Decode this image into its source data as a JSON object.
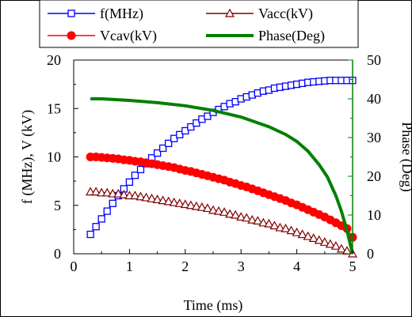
{
  "chart_data": {
    "type": "line",
    "xlabel": "Time (ms)",
    "ylabel_left": "f (MHz), V (kV)",
    "ylabel_right": "Phase (Deg)",
    "xlim": [
      0,
      5
    ],
    "ylim_left": [
      0,
      20
    ],
    "ylim_right": [
      0,
      50
    ],
    "xticks": [
      "0",
      "1",
      "2",
      "3",
      "4",
      "5"
    ],
    "yticks_left": [
      "0",
      "5",
      "10",
      "15",
      "20"
    ],
    "yticks_right": [
      "0",
      "10",
      "20",
      "30",
      "40",
      "50"
    ],
    "legend_placement": "top",
    "grid": false,
    "series": [
      {
        "name": "f(MHz)",
        "axis": "left",
        "color": "#0000ff",
        "marker": "square",
        "x": [
          0.3,
          0.4,
          0.5,
          0.6,
          0.7,
          0.8,
          0.9,
          1.0,
          1.1,
          1.2,
          1.3,
          1.4,
          1.5,
          1.6,
          1.7,
          1.8,
          1.9,
          2.0,
          2.1,
          2.2,
          2.3,
          2.4,
          2.5,
          2.6,
          2.7,
          2.8,
          2.9,
          3.0,
          3.1,
          3.2,
          3.3,
          3.4,
          3.5,
          3.6,
          3.7,
          3.8,
          3.9,
          4.0,
          4.1,
          4.2,
          4.3,
          4.4,
          4.5,
          4.6,
          4.7,
          4.8,
          4.9,
          5.0
        ],
        "y": [
          2.0,
          2.8,
          3.6,
          4.4,
          5.2,
          6.0,
          6.7,
          7.4,
          8.1,
          8.7,
          9.3,
          9.9,
          10.4,
          10.9,
          11.4,
          11.9,
          12.3,
          12.7,
          13.1,
          13.5,
          13.9,
          14.2,
          14.6,
          14.9,
          15.2,
          15.5,
          15.7,
          16.0,
          16.2,
          16.4,
          16.6,
          16.8,
          16.9,
          17.1,
          17.2,
          17.3,
          17.4,
          17.5,
          17.6,
          17.7,
          17.75,
          17.8,
          17.85,
          17.9,
          17.9,
          17.9,
          17.9,
          17.9
        ]
      },
      {
        "name": "Vacc(kV)",
        "axis": "left",
        "color": "#800000",
        "marker": "triangle",
        "x": [
          0.3,
          0.4,
          0.5,
          0.6,
          0.7,
          0.8,
          0.9,
          1.0,
          1.1,
          1.2,
          1.3,
          1.4,
          1.5,
          1.6,
          1.7,
          1.8,
          1.9,
          2.0,
          2.1,
          2.2,
          2.3,
          2.4,
          2.5,
          2.6,
          2.7,
          2.8,
          2.9,
          3.0,
          3.1,
          3.2,
          3.3,
          3.4,
          3.5,
          3.6,
          3.7,
          3.8,
          3.9,
          4.0,
          4.1,
          4.2,
          4.3,
          4.4,
          4.5,
          4.6,
          4.7,
          4.8,
          4.9,
          5.0
        ],
        "y": [
          6.4,
          6.4,
          6.3,
          6.3,
          6.2,
          6.2,
          6.1,
          6.0,
          6.0,
          5.9,
          5.8,
          5.7,
          5.6,
          5.5,
          5.4,
          5.3,
          5.2,
          5.1,
          5.0,
          4.9,
          4.8,
          4.7,
          4.5,
          4.4,
          4.3,
          4.1,
          4.0,
          3.8,
          3.7,
          3.5,
          3.4,
          3.2,
          3.1,
          2.9,
          2.7,
          2.6,
          2.4,
          2.2,
          2.0,
          1.8,
          1.6,
          1.4,
          1.2,
          1.0,
          0.8,
          0.5,
          0.3,
          0.0
        ]
      },
      {
        "name": "Vcav(kV)",
        "axis": "left",
        "color": "#ff0000",
        "marker": "circle",
        "x": [
          0.3,
          0.4,
          0.5,
          0.6,
          0.7,
          0.8,
          0.9,
          1.0,
          1.1,
          1.2,
          1.3,
          1.4,
          1.5,
          1.6,
          1.7,
          1.8,
          1.9,
          2.0,
          2.1,
          2.2,
          2.3,
          2.4,
          2.5,
          2.6,
          2.7,
          2.8,
          2.9,
          3.0,
          3.1,
          3.2,
          3.3,
          3.4,
          3.5,
          3.6,
          3.7,
          3.8,
          3.9,
          4.0,
          4.1,
          4.2,
          4.3,
          4.4,
          4.5,
          4.6,
          4.7,
          4.8,
          4.9,
          5.0
        ],
        "y": [
          10.0,
          10.0,
          9.95,
          9.9,
          9.85,
          9.8,
          9.7,
          9.65,
          9.55,
          9.5,
          9.4,
          9.3,
          9.2,
          9.1,
          9.0,
          8.9,
          8.75,
          8.6,
          8.5,
          8.35,
          8.2,
          8.05,
          7.9,
          7.75,
          7.6,
          7.4,
          7.25,
          7.05,
          6.9,
          6.7,
          6.5,
          6.3,
          6.1,
          5.9,
          5.7,
          5.5,
          5.25,
          5.05,
          4.8,
          4.55,
          4.3,
          4.05,
          3.8,
          3.5,
          3.2,
          2.9,
          2.6,
          1.7
        ]
      },
      {
        "name": "Phase(Deg)",
        "axis": "right",
        "color": "#008000",
        "marker": "none",
        "x": [
          0.3,
          0.5,
          1.0,
          1.5,
          2.0,
          2.5,
          3.0,
          3.5,
          3.8,
          4.0,
          4.2,
          4.4,
          4.55,
          4.7,
          4.8,
          4.9,
          4.95,
          5.0
        ],
        "y": [
          40.0,
          40.0,
          39.6,
          39.0,
          38.2,
          37.0,
          35.3,
          32.8,
          30.8,
          29.0,
          26.5,
          23.0,
          19.8,
          15.0,
          11.0,
          6.0,
          3.0,
          0.0
        ]
      }
    ]
  }
}
